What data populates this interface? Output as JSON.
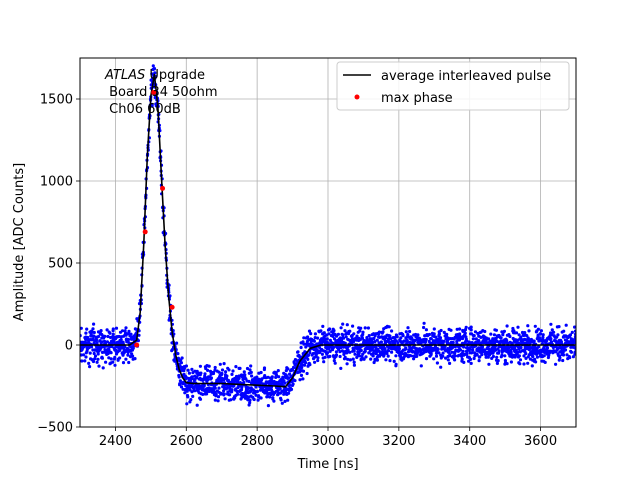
{
  "chart_data": {
    "type": "scatter",
    "title": "",
    "xlabel": "Time [ns]",
    "ylabel": "Amplitude [ADC Counts]",
    "xlim": [
      2300,
      3700
    ],
    "ylim": [
      -500,
      1750
    ],
    "xticks": [
      2400,
      2600,
      2800,
      3000,
      3200,
      3400,
      3600
    ],
    "yticks": [
      -500,
      0,
      500,
      1000,
      1500
    ],
    "grid": true,
    "legend_position": "upper right",
    "annotation": {
      "italic": "ATLAS",
      "line1_rest": " Upgrade",
      "line2": " Board 34 50ohm",
      "line3": " Ch06 60dB"
    },
    "series": [
      {
        "name": "",
        "kind": "scatter-band",
        "color": "#0000ff",
        "noise_halfwidth": 120,
        "x": [
          2300,
          2440,
          2460,
          2470,
          2480,
          2490,
          2500,
          2510,
          2520,
          2530,
          2540,
          2550,
          2560,
          2570,
          2580,
          2590,
          2600,
          2620,
          2650,
          2700,
          2750,
          2800,
          2850,
          2880,
          2900,
          2920,
          2950,
          2980,
          3000,
          3100,
          3200,
          3300,
          3400,
          3500,
          3600,
          3700
        ],
        "y": [
          0,
          0,
          30,
          200,
          620,
          1150,
          1520,
          1650,
          1450,
          1020,
          620,
          300,
          80,
          -60,
          -150,
          -200,
          -230,
          -235,
          -235,
          -235,
          -240,
          -245,
          -250,
          -255,
          -200,
          -100,
          -20,
          0,
          0,
          0,
          0,
          0,
          0,
          0,
          0,
          0
        ]
      },
      {
        "name": "average interleaved pulse",
        "kind": "line",
        "color": "#000000",
        "x": [
          2300,
          2440,
          2460,
          2470,
          2480,
          2490,
          2500,
          2510,
          2520,
          2530,
          2540,
          2550,
          2560,
          2570,
          2580,
          2590,
          2600,
          2620,
          2650,
          2700,
          2750,
          2800,
          2850,
          2880,
          2900,
          2920,
          2950,
          2980,
          3000,
          3100,
          3200,
          3300,
          3400,
          3500,
          3600,
          3700
        ],
        "y": [
          0,
          0,
          30,
          200,
          620,
          1150,
          1520,
          1650,
          1450,
          1020,
          620,
          300,
          80,
          -60,
          -150,
          -200,
          -230,
          -235,
          -235,
          -235,
          -240,
          -245,
          -250,
          -255,
          -200,
          -100,
          -20,
          0,
          0,
          0,
          0,
          0,
          0,
          0,
          0,
          0
        ]
      },
      {
        "name": "max phase",
        "kind": "points",
        "color": "#ff0000",
        "x": [
          2460,
          2484,
          2508,
          2533,
          2560
        ],
        "y": [
          0,
          690,
          1540,
          955,
          230
        ]
      }
    ]
  }
}
